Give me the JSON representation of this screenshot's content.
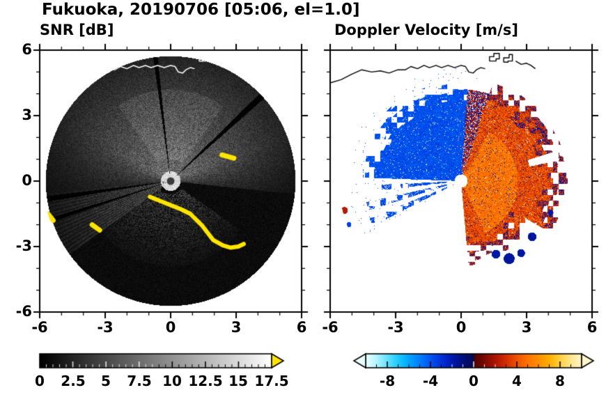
{
  "header": {
    "title": "Fukuoka, 20190706 [05:06, el=1.0]"
  },
  "panels": {
    "snr": {
      "subtitle": "SNR [dB]"
    },
    "vel": {
      "subtitle": "Doppler Velocity [m/s]"
    }
  },
  "axes": {
    "xtick_labels": [
      "-6",
      "-3",
      "0",
      "3",
      "6"
    ],
    "ytick_labels": [
      "6",
      "3",
      "0",
      "-3",
      "-6"
    ]
  },
  "colorbars": {
    "snr": {
      "tick_labels": [
        "0",
        "2.5",
        "5",
        "7.5",
        "10",
        "12.5",
        "15",
        "17.5"
      ],
      "range": [
        0,
        17.5
      ],
      "over_color": "#ffe400",
      "colormap": "grayscale-black-to-white"
    },
    "vel": {
      "tick_labels": [
        "-8",
        "-4",
        "0",
        "4",
        "8"
      ],
      "range": [
        -10,
        10
      ],
      "under_color": "#eaffff",
      "over_color": "#fff6cc"
    }
  },
  "chart_data": [
    {
      "type": "heatmap",
      "panel": "left",
      "title": "SNR [dB]",
      "xlim": [
        -6,
        6
      ],
      "ylim": [
        -6,
        6
      ],
      "xticks": [
        -6,
        -3,
        0,
        3,
        6
      ],
      "yticks": [
        -6,
        -3,
        0,
        3,
        6
      ],
      "minor_tick_step": 1,
      "colorbar": {
        "range": [
          0,
          17.5
        ],
        "tick_values": [
          0,
          2.5,
          5,
          7.5,
          10,
          12.5,
          15,
          17.5
        ],
        "minor_step": 0.5,
        "colormap": "black-to-white",
        "over_arrow_color": "#ffe400"
      },
      "scan": {
        "radius_km": 5.72,
        "center_km": [
          0,
          0
        ],
        "bright_sector_deg": [
          -6,
          186
        ],
        "west_fan_deg": [
          186,
          216
        ],
        "south_clutter": {
          "theta_deg": [
            215,
            325
          ],
          "r_km": [
            0.6,
            3.9
          ]
        },
        "shadow_wedges_deg": [
          [
            41.5,
            44.5
          ],
          [
            96,
            98
          ],
          [
            187,
            189.5
          ],
          [
            197,
            199
          ]
        ],
        "center_dot_color": "#3c3c3c"
      },
      "echo_color": "#ffe400",
      "strong_echo_segments_km": [
        [
          [
            2.35,
            1.2
          ],
          [
            2.9,
            1.05
          ]
        ],
        [
          [
            -5.62,
            -1.5
          ],
          [
            -5.38,
            -1.8
          ]
        ],
        [
          [
            -3.6,
            -2.0
          ],
          [
            -3.25,
            -2.25
          ]
        ],
        [
          [
            -0.95,
            -0.72
          ],
          [
            -0.5,
            -0.9
          ],
          [
            0.0,
            -1.1
          ],
          [
            0.5,
            -1.3
          ],
          [
            0.9,
            -1.5
          ],
          [
            1.45,
            -2.05
          ],
          [
            1.95,
            -2.7
          ],
          [
            2.4,
            -2.95
          ],
          [
            2.75,
            -3.05
          ],
          [
            3.1,
            -3.0
          ],
          [
            3.35,
            -2.88
          ]
        ]
      ]
    },
    {
      "type": "heatmap",
      "panel": "right",
      "title": "Doppler Velocity [m/s]",
      "xlim": [
        -6,
        6
      ],
      "ylim": [
        -6,
        6
      ],
      "xticks": [
        -6,
        -3,
        0,
        3,
        6
      ],
      "yticks": [
        -6,
        -3,
        0,
        3,
        6
      ],
      "minor_tick_step": 1,
      "colorbar": {
        "range": [
          -10,
          10
        ],
        "tick_values": [
          -8,
          -4,
          0,
          4,
          8
        ],
        "minor_step": 1,
        "stops": [
          [
            -10,
            "#eaffff"
          ],
          [
            -9,
            "#b0f4ff"
          ],
          [
            -8,
            "#62e2ff"
          ],
          [
            -7,
            "#1ec8ff"
          ],
          [
            -6,
            "#00a4ff"
          ],
          [
            -5,
            "#007cfa"
          ],
          [
            -4,
            "#0052f0"
          ],
          [
            -3,
            "#0030d8"
          ],
          [
            -2,
            "#0018ac"
          ],
          [
            -1,
            "#000e7a"
          ],
          [
            -0.05,
            "#000a52"
          ],
          [
            0.05,
            "#4c0000"
          ],
          [
            1,
            "#7c0a00"
          ],
          [
            2,
            "#ac1600"
          ],
          [
            3,
            "#d42e00"
          ],
          [
            4,
            "#f05400"
          ],
          [
            5,
            "#ff7300"
          ],
          [
            6,
            "#ff9100"
          ],
          [
            7,
            "#ffb000"
          ],
          [
            8,
            "#ffd042"
          ],
          [
            9,
            "#ffe68e"
          ],
          [
            10,
            "#fff6cc"
          ]
        ]
      },
      "regions": {
        "radius_km": 5.6,
        "negative_wedge": {
          "theta_deg": [
            86,
            178
          ],
          "rmax_km": [
            3.6,
            4.7
          ],
          "vel_range": [
            -4.8,
            -3.0
          ]
        },
        "thin_negative_wedges_deg": [
          [
            182.5,
            186.5
          ],
          [
            192.5,
            197.5
          ],
          [
            202,
            207
          ]
        ],
        "interface_band_deg": [
          72,
          86
        ],
        "positive_wedge": {
          "theta_deg": [
            -85,
            72
          ],
          "rmax_km": [
            2.9,
            4.9
          ],
          "vel_range": [
            2.2,
            6.2
          ]
        },
        "white_slash": {
          "theta_deg": [
            12,
            17.5
          ],
          "r_km": [
            3.2,
            4.6
          ]
        },
        "sw_patches": [
          {
            "x": -5.35,
            "y": -1.35,
            "r": 0.16,
            "v": 2.2
          },
          {
            "x": -5.5,
            "y": -1.72,
            "r": 0.15,
            "v": -4.0
          },
          {
            "x": -5.15,
            "y": -2.0,
            "r": 0.12,
            "v": -3.5
          }
        ],
        "alias_blobs": [
          [
            1.6,
            -3.35,
            0.2
          ],
          [
            2.2,
            -3.55,
            0.25
          ],
          [
            2.75,
            -3.3,
            0.18
          ],
          [
            3.25,
            -2.55,
            0.2
          ],
          [
            4.1,
            -1.45,
            0.13
          ]
        ]
      }
    }
  ],
  "map_overlay": {
    "coastline_km": [
      [
        -6.0,
        4.5
      ],
      [
        -5.5,
        4.65
      ],
      [
        -5.0,
        4.9
      ],
      [
        -4.55,
        5.1
      ],
      [
        -4.1,
        5.0
      ],
      [
        -3.7,
        5.05
      ],
      [
        -3.3,
        4.95
      ],
      [
        -2.9,
        5.1
      ],
      [
        -2.55,
        5.1
      ],
      [
        -2.3,
        5.25
      ],
      [
        -2.0,
        5.15
      ],
      [
        -1.7,
        5.3
      ],
      [
        -1.45,
        5.2
      ],
      [
        -1.15,
        5.3
      ],
      [
        -0.9,
        5.2
      ],
      [
        -0.6,
        5.3
      ],
      [
        -0.3,
        5.2
      ],
      [
        0.0,
        5.3
      ],
      [
        0.2,
        5.25
      ],
      [
        0.35,
        5.0
      ],
      [
        0.55,
        4.95
      ],
      [
        0.7,
        5.1
      ],
      [
        0.9,
        5.2
      ],
      [
        1.1,
        5.15
      ]
    ],
    "islands_km": [
      [
        [
          1.3,
          5.5
        ],
        [
          1.3,
          5.7
        ],
        [
          1.5,
          5.7
        ],
        [
          1.5,
          5.85
        ],
        [
          1.75,
          5.85
        ],
        [
          1.75,
          5.6
        ],
        [
          1.6,
          5.6
        ],
        [
          1.6,
          5.5
        ],
        [
          1.3,
          5.5
        ]
      ],
      [
        [
          1.95,
          5.45
        ],
        [
          1.95,
          5.65
        ],
        [
          2.2,
          5.65
        ],
        [
          2.2,
          5.8
        ],
        [
          2.35,
          5.8
        ],
        [
          2.35,
          5.5
        ],
        [
          2.15,
          5.5
        ],
        [
          2.15,
          5.45
        ],
        [
          1.95,
          5.45
        ]
      ]
    ],
    "coast_segment_km": [
      [
        2.5,
        5.5
      ],
      [
        2.75,
        5.35
      ],
      [
        3.0,
        5.4
      ],
      [
        3.2,
        5.3
      ],
      [
        3.4,
        5.15
      ]
    ],
    "line_color_left": "#ffffff",
    "line_color_right": "#000000"
  }
}
